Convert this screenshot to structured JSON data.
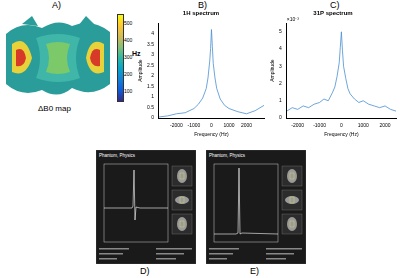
{
  "panel_labels": [
    "A)",
    "B)",
    "C)",
    "D)",
    "E)"
  ],
  "map": {
    "caption": "ΔB0 map",
    "colorbar": {
      "label": "Hz",
      "range": [
        50,
        550
      ],
      "ticks": [
        100,
        200,
        300,
        400,
        500
      ]
    }
  },
  "chart_data": [
    {
      "type": "line",
      "title": "1H spectrum",
      "x_label": "Frequency (Hz)",
      "y_label": "Amplitude",
      "color": "#4a8fd0",
      "x": [
        -3000,
        -2500,
        -2000,
        -1500,
        -1000,
        -750,
        -500,
        -300,
        -200,
        -100,
        -50,
        0,
        50,
        100,
        200,
        300,
        500,
        750,
        1000,
        1500,
        2000,
        2500,
        3000
      ],
      "values": [
        0.05,
        0.1,
        0.2,
        0.25,
        0.45,
        0.65,
        0.95,
        1.4,
        1.9,
        2.7,
        3.3,
        4.2,
        3.4,
        2.6,
        1.9,
        1.4,
        0.9,
        0.6,
        0.45,
        0.3,
        0.2,
        0.35,
        0.6
      ],
      "xlim": [
        -3000,
        3000
      ],
      "xticks": [
        -2000,
        -1000,
        0,
        1000,
        2000
      ],
      "ylim": [
        0,
        4.5
      ],
      "yticks": [
        0,
        0.5,
        1,
        1.5,
        2,
        2.5,
        3,
        3.5,
        4
      ],
      "grid": false
    },
    {
      "type": "line",
      "title": "31P spectrum",
      "x_label": "Frequency (Hz)",
      "y_label": "Amplitude",
      "y_exponent_label": "×10⁻³",
      "color": "#4a8fd0",
      "x": [
        -2500,
        -2250,
        -2000,
        -1750,
        -1500,
        -1250,
        -1000,
        -800,
        -600,
        -400,
        -300,
        -200,
        -100,
        -50,
        0,
        50,
        100,
        200,
        300,
        400,
        600,
        800,
        1000,
        1250,
        1500,
        1750,
        2000,
        2250,
        2500
      ],
      "values": [
        0.4,
        0.6,
        0.5,
        0.7,
        0.6,
        0.8,
        0.9,
        1.1,
        1.0,
        1.5,
        1.8,
        2.4,
        3.2,
        4.1,
        5.0,
        3.9,
        3.0,
        2.3,
        1.7,
        1.4,
        1.1,
        0.9,
        1.0,
        0.8,
        0.7,
        0.6,
        0.7,
        0.5,
        0.4
      ],
      "xlim": [
        -2500,
        2500
      ],
      "xticks": [
        -2000,
        -1000,
        0,
        1000,
        2000
      ],
      "ylim": [
        0,
        5.5
      ],
      "yticks": [
        0,
        1,
        2,
        3,
        4,
        5
      ],
      "grid": false
    }
  ],
  "screenshots": [
    {
      "header": "Phantom, Physics"
    },
    {
      "header": "Phantom, Physics"
    }
  ]
}
